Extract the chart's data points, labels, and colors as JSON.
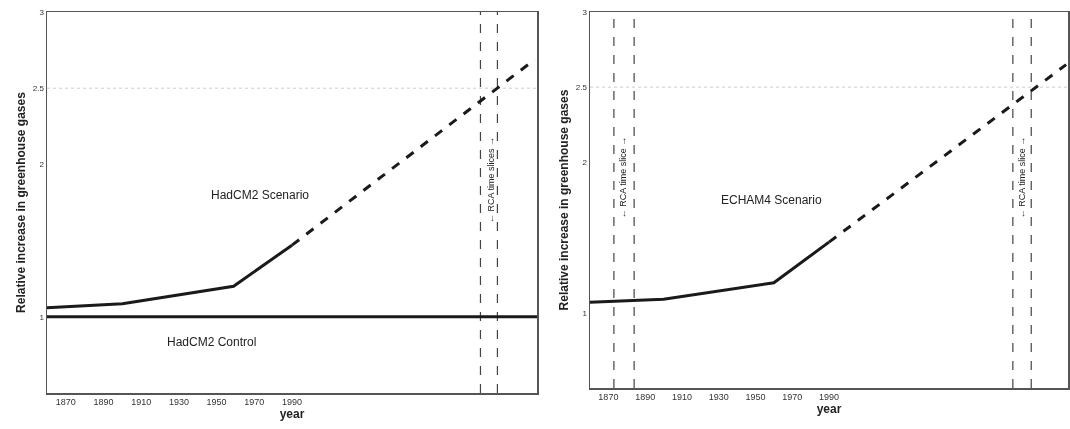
{
  "chart_data": [
    {
      "type": "line",
      "xlabel": "year",
      "ylabel": "Relative increase in greenhouse gases",
      "xlim": [
        1860,
        2120
      ],
      "ylim": [
        0.5,
        3
      ],
      "xticks": [
        1870,
        1890,
        1910,
        1930,
        1950,
        1970,
        1990
      ],
      "yticks": [
        1,
        2,
        2.5,
        3
      ],
      "grid": false,
      "series": [
        {
          "color": "#1a1a1a",
          "line_style": "solid",
          "x": [
            1860,
            1900,
            1959,
            1990
          ],
          "values": [
            1.06,
            1.085,
            1.2,
            1.47
          ]
        },
        {
          "color": "#1a1a1a",
          "line_style": "dashed",
          "x": [
            1990,
            2119
          ],
          "values": [
            1.47,
            2.69
          ]
        },
        {
          "color": "#1a1a1a",
          "line_style": "solid",
          "x": [
            1860,
            2120
          ],
          "values": [
            1,
            1
          ]
        }
      ],
      "annotations": [
        "HadCM2 Scenario",
        "HadCM2 Control"
      ],
      "ref_lines": [
        {
          "axis": "y",
          "value": 2.5,
          "line_style": "dotted",
          "color": "#cccccc"
        },
        {
          "axis": "x",
          "value": 2090,
          "label": "← RCA time slices →",
          "line_style": "dashed",
          "color": "#444444"
        },
        {
          "axis": "x",
          "value": 2099,
          "line_style": "dashed",
          "color": "#444444"
        }
      ]
    },
    {
      "type": "line",
      "xlabel": "year",
      "ylabel": "Relative increase in greenhouse gases",
      "xlim": [
        1860,
        2120
      ],
      "ylim": [
        0.5,
        3
      ],
      "xticks": [
        1870,
        1890,
        1910,
        1930,
        1950,
        1970,
        1990
      ],
      "yticks": [
        1,
        2,
        2.5,
        3
      ],
      "grid": false,
      "series": [
        {
          "color": "#1a1a1a",
          "line_style": "solid",
          "x": [
            1860,
            1900,
            1960,
            1990
          ],
          "values": [
            1.07,
            1.09,
            1.2,
            1.47
          ]
        },
        {
          "color": "#1a1a1a",
          "line_style": "dashed",
          "x": [
            1990,
            2119
          ],
          "values": [
            1.47,
            2.65
          ]
        }
      ],
      "annotations": [
        "ECHAM4 Scenario"
      ],
      "ref_lines": [
        {
          "axis": "y",
          "value": 2.5,
          "line_style": "dotted",
          "color": "#cccccc"
        },
        {
          "axis": "x",
          "value": 1873,
          "label": "← RCA time slice →",
          "line_style": "dashed",
          "color": "#444444"
        },
        {
          "axis": "x",
          "value": 1884,
          "line_style": "dashed",
          "color": "#444444"
        },
        {
          "axis": "x",
          "value": 2090,
          "label": "← RCA time slice →",
          "line_style": "dashed",
          "color": "#444444"
        },
        {
          "axis": "x",
          "value": 2100,
          "line_style": "dashed",
          "color": "#444444"
        }
      ]
    }
  ]
}
